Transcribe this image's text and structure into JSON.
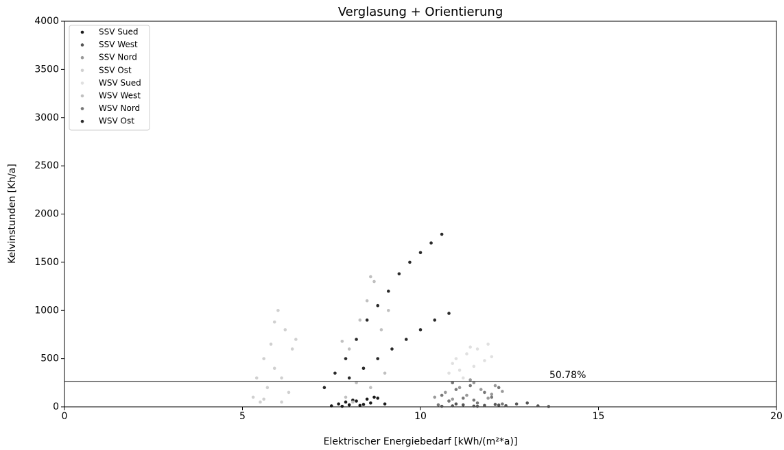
{
  "chart_data": {
    "type": "scatter",
    "title": "Verglasung + Orientierung",
    "xlabel": "Elektrischer Energiebedarf [kWh/(m²*a)]",
    "ylabel": "Kelvinstunden [Kh/a]",
    "xlim": [
      0,
      20
    ],
    "ylim": [
      0,
      4000
    ],
    "xticks": [
      0,
      5,
      10,
      15,
      20
    ],
    "yticks": [
      0,
      500,
      1000,
      1500,
      2000,
      2500,
      3000,
      3500,
      4000
    ],
    "legend": "upper left",
    "hline": 263,
    "annotation": "50.78%",
    "series": [
      {
        "name": "SSV Sued",
        "color": "#1a1a1a",
        "x": [
          7.5,
          7.7,
          7.9,
          8.0,
          8.2,
          8.3,
          8.5,
          8.6,
          8.8,
          9.0,
          7.8,
          8.1,
          8.4,
          8.7
        ],
        "values": [
          10,
          30,
          50,
          20,
          60,
          15,
          80,
          40,
          90,
          30,
          5,
          70,
          25,
          100
        ]
      },
      {
        "name": "SSV West",
        "color": "#555555",
        "x": [
          10.6,
          10.9,
          11.2,
          11.5,
          11.8,
          12.1,
          12.4,
          12.7,
          13.0,
          13.3,
          13.6,
          11.0,
          11.6,
          12.2
        ],
        "values": [
          5,
          10,
          20,
          8,
          15,
          25,
          12,
          30,
          40,
          10,
          3,
          30,
          5,
          18
        ]
      },
      {
        "name": "SSV Nord",
        "color": "#999999",
        "x": [
          10.4,
          10.7,
          10.9,
          11.1,
          11.3,
          11.5,
          11.7,
          11.9,
          12.1,
          12.3,
          10.8,
          11.4,
          12.0
        ],
        "values": [
          100,
          150,
          80,
          200,
          120,
          250,
          180,
          90,
          220,
          160,
          60,
          280,
          130
        ]
      },
      {
        "name": "SSV Ost",
        "color": "#d0d0d0",
        "x": [
          5.3,
          5.4,
          5.5,
          5.6,
          5.7,
          5.8,
          5.9,
          6.0,
          6.1,
          6.2,
          6.3,
          6.4,
          6.5,
          5.6,
          5.9,
          6.1
        ],
        "values": [
          100,
          300,
          50,
          500,
          200,
          650,
          400,
          1000,
          300,
          800,
          150,
          600,
          700,
          80,
          880,
          50
        ]
      },
      {
        "name": "WSV Sued",
        "color": "#e0e0e0",
        "x": [
          10.8,
          10.9,
          11.0,
          11.2,
          11.3,
          11.5,
          11.6,
          11.8,
          11.9,
          12.0,
          11.1,
          11.4
        ],
        "values": [
          350,
          450,
          500,
          300,
          550,
          420,
          600,
          480,
          650,
          520,
          380,
          620
        ]
      },
      {
        "name": "WSV West",
        "color": "#c0c0c0",
        "x": [
          7.8,
          7.9,
          8.0,
          8.2,
          8.3,
          8.4,
          8.5,
          8.6,
          8.7,
          8.8,
          8.9,
          9.0,
          9.1,
          8.1,
          8.6
        ],
        "values": [
          680,
          100,
          600,
          250,
          900,
          400,
          1100,
          200,
          1300,
          500,
          800,
          350,
          1000,
          50,
          1350
        ]
      },
      {
        "name": "WSV Nord",
        "color": "#777777",
        "x": [
          10.5,
          10.6,
          10.8,
          11.0,
          11.2,
          11.4,
          11.6,
          11.8,
          12.0,
          12.2,
          10.9,
          11.5,
          12.3
        ],
        "values": [
          20,
          120,
          60,
          180,
          90,
          220,
          40,
          150,
          100,
          200,
          250,
          70,
          30
        ]
      },
      {
        "name": "WSV Ost",
        "color": "#2a2a2a",
        "x": [
          7.3,
          7.6,
          7.9,
          8.2,
          8.5,
          8.8,
          9.1,
          9.4,
          9.7,
          10.0,
          10.3,
          10.6,
          8.0,
          8.4,
          8.8,
          9.2,
          9.6,
          10.0,
          10.4,
          10.8
        ],
        "values": [
          200,
          350,
          500,
          700,
          900,
          1050,
          1200,
          1380,
          1500,
          1600,
          1700,
          1790,
          300,
          400,
          500,
          600,
          700,
          800,
          900,
          970
        ]
      }
    ]
  }
}
